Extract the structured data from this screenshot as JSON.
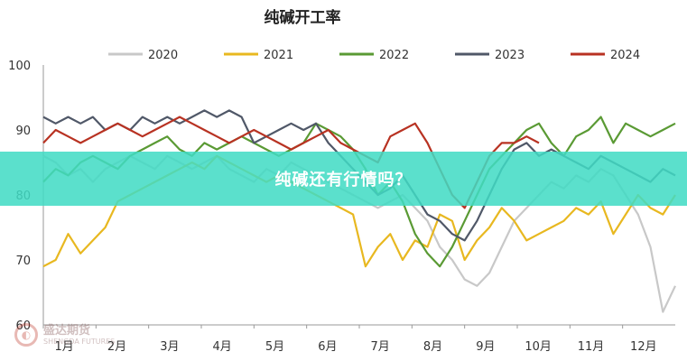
{
  "chart_data": {
    "type": "line",
    "title": "纯碱开工率",
    "xlabel": "",
    "ylabel": "",
    "ylim": [
      60,
      100
    ],
    "yticks": [
      60,
      70,
      80,
      90,
      100
    ],
    "x_tick_labels": [
      "1月",
      "2月",
      "3月",
      "4月",
      "5月",
      "6月",
      "7月",
      "8月",
      "9月",
      "10月",
      "11月",
      "12月"
    ],
    "legend_position": "top",
    "grid": false,
    "x_unit": "week",
    "x_range": [
      1,
      52
    ],
    "series": [
      {
        "name": "2020",
        "color": "#c8c8c8",
        "x": [
          1,
          2,
          3,
          4,
          5,
          6,
          7,
          8,
          9,
          10,
          11,
          12,
          13,
          14,
          15,
          16,
          17,
          18,
          19,
          20,
          21,
          22,
          23,
          24,
          25,
          26,
          27,
          28,
          29,
          30,
          31,
          32,
          33,
          34,
          35,
          36,
          37,
          38,
          39,
          40,
          41,
          42,
          43,
          44,
          45,
          46,
          47,
          48,
          49,
          50,
          51,
          52
        ],
        "values": [
          86,
          85,
          83,
          84,
          82,
          84,
          85,
          86,
          85,
          84,
          86,
          85,
          84,
          85,
          86,
          84,
          83,
          82,
          84,
          83,
          85,
          84,
          83,
          82,
          81,
          80,
          79,
          78,
          79,
          80,
          78,
          76,
          72,
          70,
          67,
          66,
          68,
          72,
          76,
          78,
          80,
          82,
          81,
          83,
          82,
          84,
          83,
          80,
          77,
          72,
          62,
          66
        ]
      },
      {
        "name": "2021",
        "color": "#e8b820",
        "x": [
          1,
          2,
          3,
          4,
          5,
          6,
          7,
          8,
          9,
          10,
          11,
          12,
          13,
          14,
          15,
          16,
          17,
          18,
          19,
          20,
          21,
          22,
          23,
          24,
          25,
          26,
          27,
          28,
          29,
          30,
          31,
          32,
          33,
          34,
          35,
          36,
          37,
          38,
          39,
          40,
          41,
          42,
          43,
          44,
          45,
          46,
          47,
          48,
          49,
          50,
          51,
          52
        ],
        "values": [
          69,
          70,
          74,
          71,
          73,
          75,
          79,
          80,
          81,
          82,
          83,
          84,
          85,
          84,
          86,
          85,
          84,
          83,
          82,
          83,
          82,
          81,
          80,
          79,
          78,
          77,
          69,
          72,
          74,
          70,
          73,
          72,
          77,
          76,
          70,
          73,
          75,
          78,
          76,
          73,
          74,
          75,
          76,
          78,
          77,
          79,
          74,
          77,
          80,
          78,
          77,
          80
        ]
      },
      {
        "name": "2022",
        "color": "#5a9a34",
        "x": [
          1,
          2,
          3,
          4,
          5,
          6,
          7,
          8,
          9,
          10,
          11,
          12,
          13,
          14,
          15,
          16,
          17,
          18,
          19,
          20,
          21,
          22,
          23,
          24,
          25,
          26,
          27,
          28,
          29,
          30,
          31,
          32,
          33,
          34,
          35,
          36,
          37,
          38,
          39,
          40,
          41,
          42,
          43,
          44,
          45,
          46,
          47,
          48,
          49,
          50,
          51,
          52
        ],
        "values": [
          82,
          84,
          83,
          85,
          86,
          85,
          84,
          86,
          87,
          88,
          89,
          87,
          86,
          88,
          87,
          88,
          89,
          88,
          87,
          86,
          87,
          88,
          91,
          90,
          89,
          87,
          84,
          80,
          82,
          79,
          74,
          71,
          69,
          72,
          76,
          80,
          84,
          86,
          88,
          90,
          91,
          88,
          86,
          89,
          90,
          92,
          88,
          91,
          90,
          89,
          90,
          91
        ]
      },
      {
        "name": "2023",
        "color": "#505868",
        "x": [
          1,
          2,
          3,
          4,
          5,
          6,
          7,
          8,
          9,
          10,
          11,
          12,
          13,
          14,
          15,
          16,
          17,
          18,
          19,
          20,
          21,
          22,
          23,
          24,
          25,
          26,
          27,
          28,
          29,
          30,
          31,
          32,
          33,
          34,
          35,
          36,
          37,
          38,
          39,
          40,
          41,
          42,
          43,
          44,
          45,
          46,
          47,
          48,
          49,
          50,
          51,
          52
        ],
        "values": [
          92,
          91,
          92,
          91,
          92,
          90,
          91,
          90,
          92,
          91,
          92,
          91,
          92,
          93,
          92,
          93,
          92,
          88,
          89,
          90,
          91,
          90,
          91,
          88,
          86,
          84,
          82,
          80,
          81,
          83,
          80,
          77,
          76,
          74,
          73,
          76,
          80,
          84,
          87,
          88,
          86,
          87,
          86,
          85,
          84,
          86,
          85,
          84,
          83,
          82,
          84,
          83
        ]
      },
      {
        "name": "2024",
        "color": "#b83222",
        "x": [
          1,
          2,
          3,
          4,
          5,
          6,
          7,
          8,
          9,
          10,
          11,
          12,
          13,
          14,
          15,
          16,
          17,
          18,
          19,
          20,
          21,
          22,
          23,
          24,
          25,
          26,
          27,
          28,
          29,
          30,
          31,
          32,
          33,
          34,
          35,
          36,
          37,
          38,
          39,
          40,
          41
        ],
        "values": [
          88,
          90,
          89,
          88,
          89,
          90,
          91,
          90,
          89,
          90,
          91,
          92,
          91,
          90,
          89,
          88,
          89,
          90,
          89,
          88,
          87,
          88,
          89,
          90,
          88,
          87,
          86,
          85,
          89,
          90,
          91,
          88,
          84,
          80,
          78,
          82,
          86,
          88,
          88,
          89,
          88
        ]
      }
    ]
  },
  "banner_text": "纯碱还有行情吗？",
  "watermark": {
    "top": "盛达期货",
    "bottom": "SHENGDA FUTURES"
  }
}
